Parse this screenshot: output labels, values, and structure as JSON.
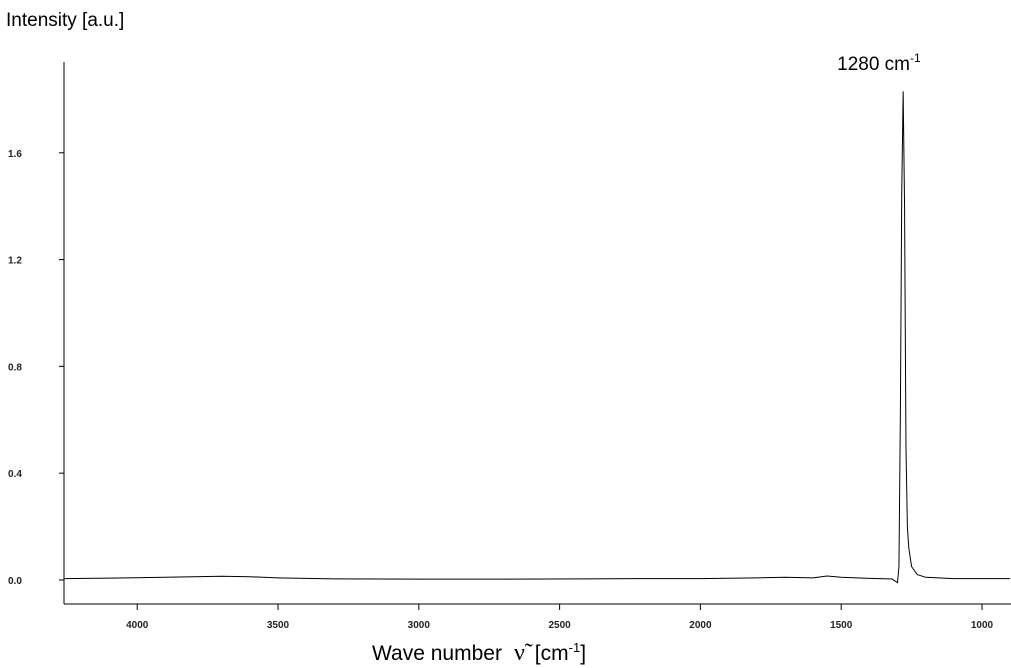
{
  "chart_data": {
    "type": "line",
    "y_label": "Intensity [a.u.]",
    "x_label": {
      "text": "Wave number",
      "symbol": "ν̃",
      "unit": "[cm",
      "unit_sup": "-1",
      "unit_end": "]"
    },
    "annotation": {
      "text": "1280 cm",
      "sup": "-1",
      "x": 1280
    },
    "x": [
      4260,
      4100,
      3900,
      3800,
      3700,
      3600,
      3500,
      3300,
      3000,
      2700,
      2400,
      2200,
      2000,
      1800,
      1700,
      1600,
      1550,
      1500,
      1400,
      1320,
      1300,
      1295,
      1290,
      1285,
      1280,
      1275,
      1270,
      1265,
      1260,
      1250,
      1230,
      1200,
      1100,
      1000,
      900
    ],
    "series": [
      {
        "color": "#000000",
        "values": [
          0.005,
          0.007,
          0.01,
          0.012,
          0.014,
          0.012,
          0.008,
          0.004,
          0.003,
          0.003,
          0.004,
          0.005,
          0.005,
          0.008,
          0.01,
          0.008,
          0.015,
          0.01,
          0.006,
          0.004,
          -0.01,
          0.05,
          0.6,
          1.45,
          1.83,
          1.4,
          0.5,
          0.2,
          0.12,
          0.05,
          0.02,
          0.01,
          0.005,
          0.005,
          0.005
        ]
      }
    ],
    "xlim": [
      4260,
      897
    ],
    "ylim": [
      -0.09,
      1.94
    ],
    "xticks": [
      4000,
      3500,
      3000,
      2500,
      2000,
      1500,
      1000
    ],
    "yticks": [
      {
        "value": 0,
        "label": "0.0"
      },
      0.4,
      0.8,
      1.2,
      1.6
    ]
  }
}
